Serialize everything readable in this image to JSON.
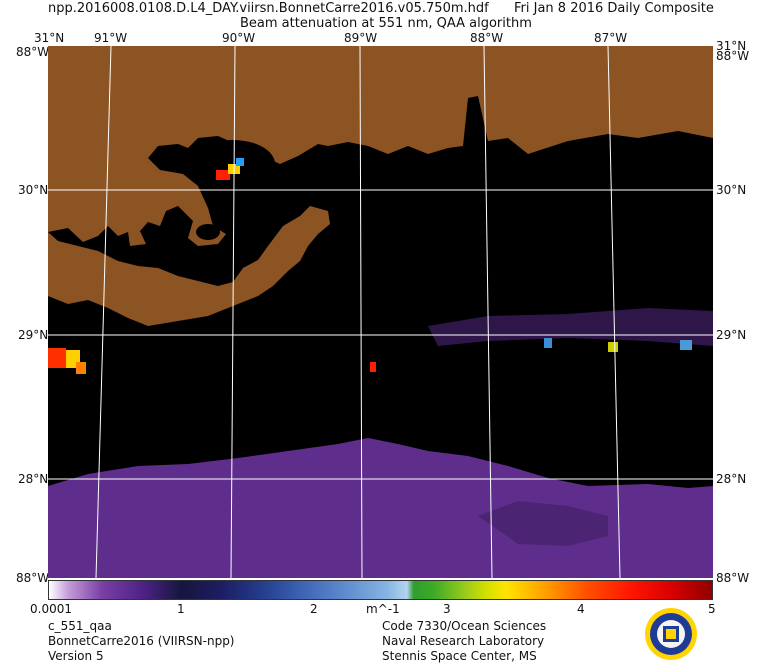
{
  "header": {
    "filename": "npp.2016008.0108.D.L4_DAY.viirsn.BonnetCarre2016.v05.750m.hdf",
    "date": "Fri Jan  8 2016 Daily Composite",
    "product": "Beam attenuation at 551 nm, QAA algorithm"
  },
  "map": {
    "top_lon_labels": [
      "91°W",
      "90°W",
      "89°W",
      "88°W",
      "87°W"
    ],
    "corner_top_left": "31°N",
    "corner_top_left_lon": "88°W",
    "corner_top_right": "31°N",
    "corner_top_right_lon": "88°W",
    "lat_labels": [
      "30°N",
      "29°N",
      "28°N"
    ],
    "corner_bottom_left": "88°W",
    "corner_bottom_right": "88°W",
    "land_color": "#8c5423",
    "water_color": "#000000",
    "grid_color": "#ffffff"
  },
  "colorbar": {
    "ticks": [
      "0.0001",
      "1",
      "2",
      "3",
      "4",
      "5"
    ],
    "unit": "m^-1"
  },
  "footer": {
    "left_line1": "c_551_qaa",
    "left_line2": "BonnetCarre2016 (VIIRSN-npp)",
    "left_line3": "Version 5",
    "right_line1": "Code 7330/Ocean Sciences",
    "right_line2": "Naval Research Laboratory",
    "right_line3": "Stennis Space Center, MS"
  }
}
